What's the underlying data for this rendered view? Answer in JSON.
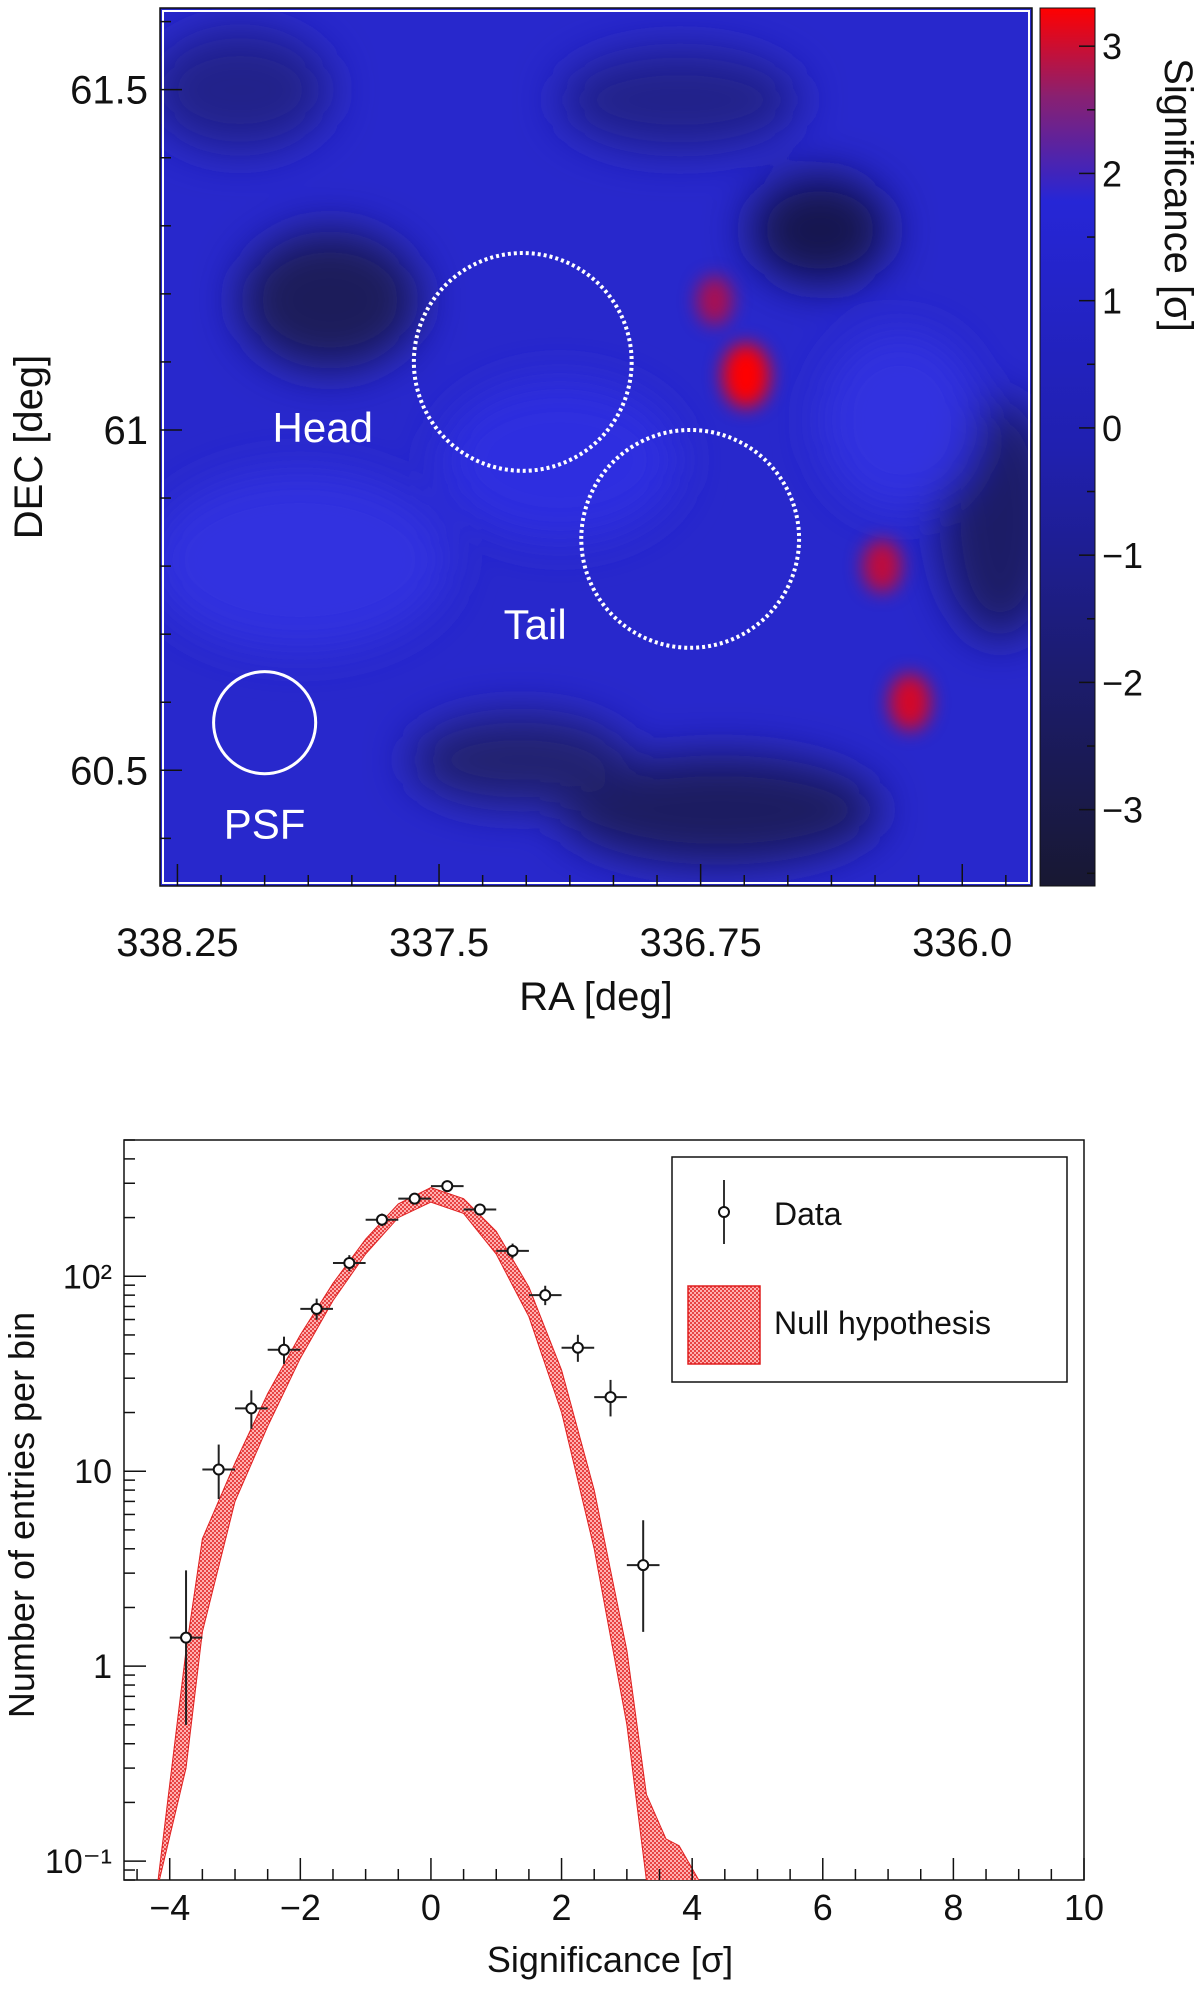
{
  "chart_data": [
    {
      "type": "heatmap",
      "xlabel": "RA [deg]",
      "ylabel": "DEC [deg]",
      "colorbar_label": "Significance [σ]",
      "xlim": [
        338.3,
        335.8
      ],
      "ylim": [
        60.33,
        61.62
      ],
      "zlim": [
        -3.6,
        3.3
      ],
      "x_ticks": [
        "338.25",
        "337.5",
        "336.75",
        "336.0"
      ],
      "x_tick_values": [
        338.25,
        337.5,
        336.75,
        336.0
      ],
      "y_ticks": [
        "60.5",
        "61",
        "61.5"
      ],
      "y_tick_values": [
        60.5,
        61.0,
        61.5
      ],
      "colorbar_ticks": [
        "3",
        "2",
        "1",
        "0",
        "−1",
        "−2",
        "−3"
      ],
      "colorbar_tick_values": [
        3,
        2,
        1,
        0,
        -1,
        -2,
        -3
      ],
      "colors": {
        "low": "#1a1a33",
        "mid": "#2020c8",
        "high": "#ff0000",
        "background": "#2a2ad0"
      },
      "regions": [
        {
          "name": "Head",
          "label": "Head",
          "ra": 337.26,
          "dec": 61.1,
          "radius_deg": 0.16,
          "style": "dotted"
        },
        {
          "name": "Tail",
          "label": "Tail",
          "ra": 336.78,
          "dec": 60.84,
          "radius_deg": 0.16,
          "style": "dotted"
        },
        {
          "name": "PSF",
          "label": "PSF",
          "ra": 338.0,
          "dec": 60.57,
          "radius_deg": 0.075,
          "style": "solid"
        }
      ],
      "hotspots": [
        {
          "ra": 336.62,
          "dec": 61.08,
          "significance": 3.2
        },
        {
          "ra": 336.71,
          "dec": 61.19,
          "significance": 2.8
        },
        {
          "ra": 336.23,
          "dec": 60.8,
          "significance": 2.9
        },
        {
          "ra": 336.15,
          "dec": 60.6,
          "significance": 3.0
        }
      ]
    },
    {
      "type": "errorbar_histogram",
      "xlabel": "Significance [σ]",
      "ylabel": "Number of entries per bin",
      "yscale": "log",
      "xlim": [
        -4.7,
        10
      ],
      "ylim": [
        0.08,
        500
      ],
      "x_ticks": [
        "−4",
        "−2",
        "0",
        "2",
        "4",
        "6",
        "8",
        "10"
      ],
      "x_tick_values": [
        -4,
        -2,
        0,
        2,
        4,
        6,
        8,
        10
      ],
      "y_ticks": [
        "10⁻¹",
        "1",
        "10",
        "10²"
      ],
      "y_tick_values": [
        0.1,
        1,
        10,
        100
      ],
      "legend": {
        "data_label": "Data",
        "null_label": "Null hypothesis",
        "position": "top-right"
      },
      "series": [
        {
          "name": "Data",
          "x": [
            -3.75,
            -3.25,
            -2.75,
            -2.25,
            -1.75,
            -1.25,
            -0.75,
            -0.25,
            0.25,
            0.75,
            1.25,
            1.75,
            2.25,
            2.75,
            3.25
          ],
          "y": [
            1.4,
            10.2,
            21,
            42,
            68,
            117,
            195,
            250,
            290,
            220,
            135,
            80,
            43,
            24,
            3.3
          ],
          "yerr_low": [
            0.9,
            3.0,
            4.5,
            6.5,
            8.2,
            10.8,
            14,
            15.8,
            17,
            14.8,
            11.6,
            8.9,
            6.6,
            4.9,
            1.8
          ],
          "yerr_high": [
            1.7,
            3.5,
            5.0,
            7.0,
            8.8,
            11.3,
            14.5,
            16.3,
            17.5,
            15.3,
            12.1,
            9.4,
            7.1,
            5.4,
            2.3
          ]
        },
        {
          "name": "Null hypothesis",
          "x": [
            -4.2,
            -3.75,
            -3.5,
            -3.0,
            -2.5,
            -2.0,
            -1.5,
            -1.0,
            -0.5,
            0.0,
            0.5,
            1.0,
            1.5,
            2.0,
            2.5,
            3.0,
            3.3,
            3.6,
            3.8,
            4.2
          ],
          "lower": [
            0.07,
            0.3,
            1.5,
            7.0,
            17,
            38,
            75,
            130,
            200,
            240,
            210,
            130,
            62,
            20,
            4.0,
            0.5,
            0.08,
            0.07,
            0.07,
            0.07
          ],
          "upper": [
            0.07,
            1.2,
            4.5,
            11,
            25,
            50,
            92,
            155,
            235,
            285,
            250,
            170,
            88,
            33,
            8.0,
            1.2,
            0.22,
            0.13,
            0.12,
            0.07
          ]
        }
      ]
    }
  ]
}
